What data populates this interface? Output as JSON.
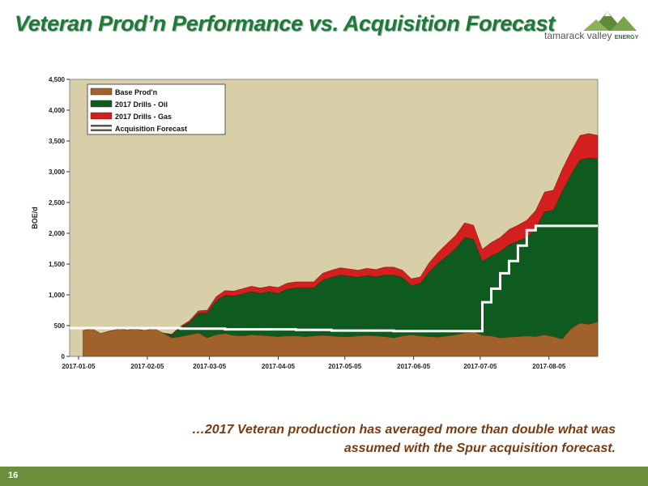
{
  "slide": {
    "title": "Veteran Prod’n Performance vs. Acquisition Forecast",
    "logo_text": "tamarack valley",
    "logo_small": "ENERGY",
    "caption_line1": "…2017 Veteran production has averaged more than double what was",
    "caption_line2": "assumed with the Spur acquisition forecast.",
    "page_number": "16"
  },
  "colors": {
    "title": "#1f7a36",
    "base": "#a0622a",
    "oil": "#0f5a1e",
    "gas": "#d41f1f",
    "forecast": "#ffffff",
    "plot_bg": "#d8cfa8",
    "footer": "#6b8f3d"
  },
  "chart_data": {
    "type": "area",
    "ylabel": "BOE/d",
    "xlabel": "",
    "ylim": [
      0,
      4500
    ],
    "yticks": [
      "0",
      "500",
      "1,000",
      "1,500",
      "2,000",
      "2,500",
      "3,000",
      "3,500",
      "4,000",
      "4,500"
    ],
    "xtick_labels": [
      "2017-01-05",
      "2017-02-05",
      "2017-03-05",
      "2017-04-05",
      "2017-05-05",
      "2017-06-05",
      "2017-07-05",
      "2017-08-05"
    ],
    "xtick_days": [
      4,
      35,
      63,
      94,
      124,
      155,
      185,
      216
    ],
    "xlim_days": [
      0,
      238
    ],
    "grid": false,
    "legend_position": "top-left",
    "x_days": [
      6,
      10,
      14,
      18,
      22,
      26,
      30,
      34,
      38,
      42,
      46,
      50,
      54,
      58,
      62,
      66,
      70,
      74,
      78,
      82,
      86,
      90,
      94,
      98,
      102,
      106,
      110,
      114,
      118,
      122,
      126,
      130,
      134,
      138,
      142,
      146,
      150,
      154,
      158,
      162,
      166,
      170,
      174,
      178,
      182,
      186,
      190,
      194,
      198,
      202,
      206,
      210,
      214,
      218,
      222,
      226,
      230,
      234,
      238
    ],
    "series": [
      {
        "name": "Base Prod'n",
        "values": [
          420,
          450,
          370,
          410,
          440,
          430,
          440,
          420,
          450,
          380,
          300,
          320,
          350,
          380,
          300,
          350,
          370,
          340,
          330,
          350,
          340,
          330,
          320,
          330,
          330,
          320,
          330,
          340,
          330,
          320,
          320,
          330,
          340,
          330,
          320,
          300,
          330,
          350,
          330,
          320,
          310,
          330,
          350,
          380,
          400,
          340,
          330,
          300,
          310,
          320,
          330,
          320,
          350,
          320,
          280,
          450,
          540,
          520,
          560
        ]
      },
      {
        "name": "2017 Drills - Oil",
        "values": [
          0,
          0,
          0,
          0,
          0,
          0,
          0,
          0,
          0,
          0,
          50,
          150,
          200,
          320,
          400,
          550,
          620,
          640,
          680,
          700,
          680,
          720,
          700,
          760,
          780,
          790,
          780,
          900,
          950,
          1000,
          980,
          950,
          970,
          960,
          1000,
          1020,
          950,
          800,
          850,
          1050,
          1200,
          1300,
          1400,
          1550,
          1500,
          1200,
          1300,
          1400,
          1500,
          1550,
          1600,
          1750,
          2000,
          2050,
          2400,
          2500,
          2650,
          2700,
          2650
        ]
      },
      {
        "name": "2017 Drills - Gas",
        "values": [
          0,
          0,
          0,
          0,
          0,
          0,
          0,
          0,
          0,
          0,
          10,
          20,
          30,
          40,
          50,
          70,
          80,
          80,
          90,
          90,
          90,
          90,
          100,
          100,
          100,
          100,
          100,
          110,
          120,
          120,
          120,
          120,
          120,
          120,
          130,
          130,
          120,
          110,
          110,
          150,
          180,
          200,
          220,
          240,
          230,
          200,
          220,
          230,
          250,
          260,
          280,
          300,
          320,
          330,
          360,
          380,
          400,
          400,
          380
        ]
      },
      {
        "name": "Acquisition Forecast",
        "values": [
          460,
          460,
          460,
          460,
          460,
          460,
          460,
          460,
          460,
          460,
          460,
          450,
          450,
          450,
          450,
          450,
          440,
          440,
          440,
          440,
          440,
          440,
          440,
          440,
          430,
          430,
          430,
          430,
          420,
          420,
          420,
          420,
          420,
          420,
          420,
          410,
          410,
          410,
          410,
          410,
          410,
          410,
          410,
          410,
          410,
          880,
          1100,
          1350,
          1550,
          1800,
          2050,
          2120,
          2120,
          2120,
          2120,
          2120,
          2120,
          2120,
          2120
        ]
      }
    ]
  }
}
